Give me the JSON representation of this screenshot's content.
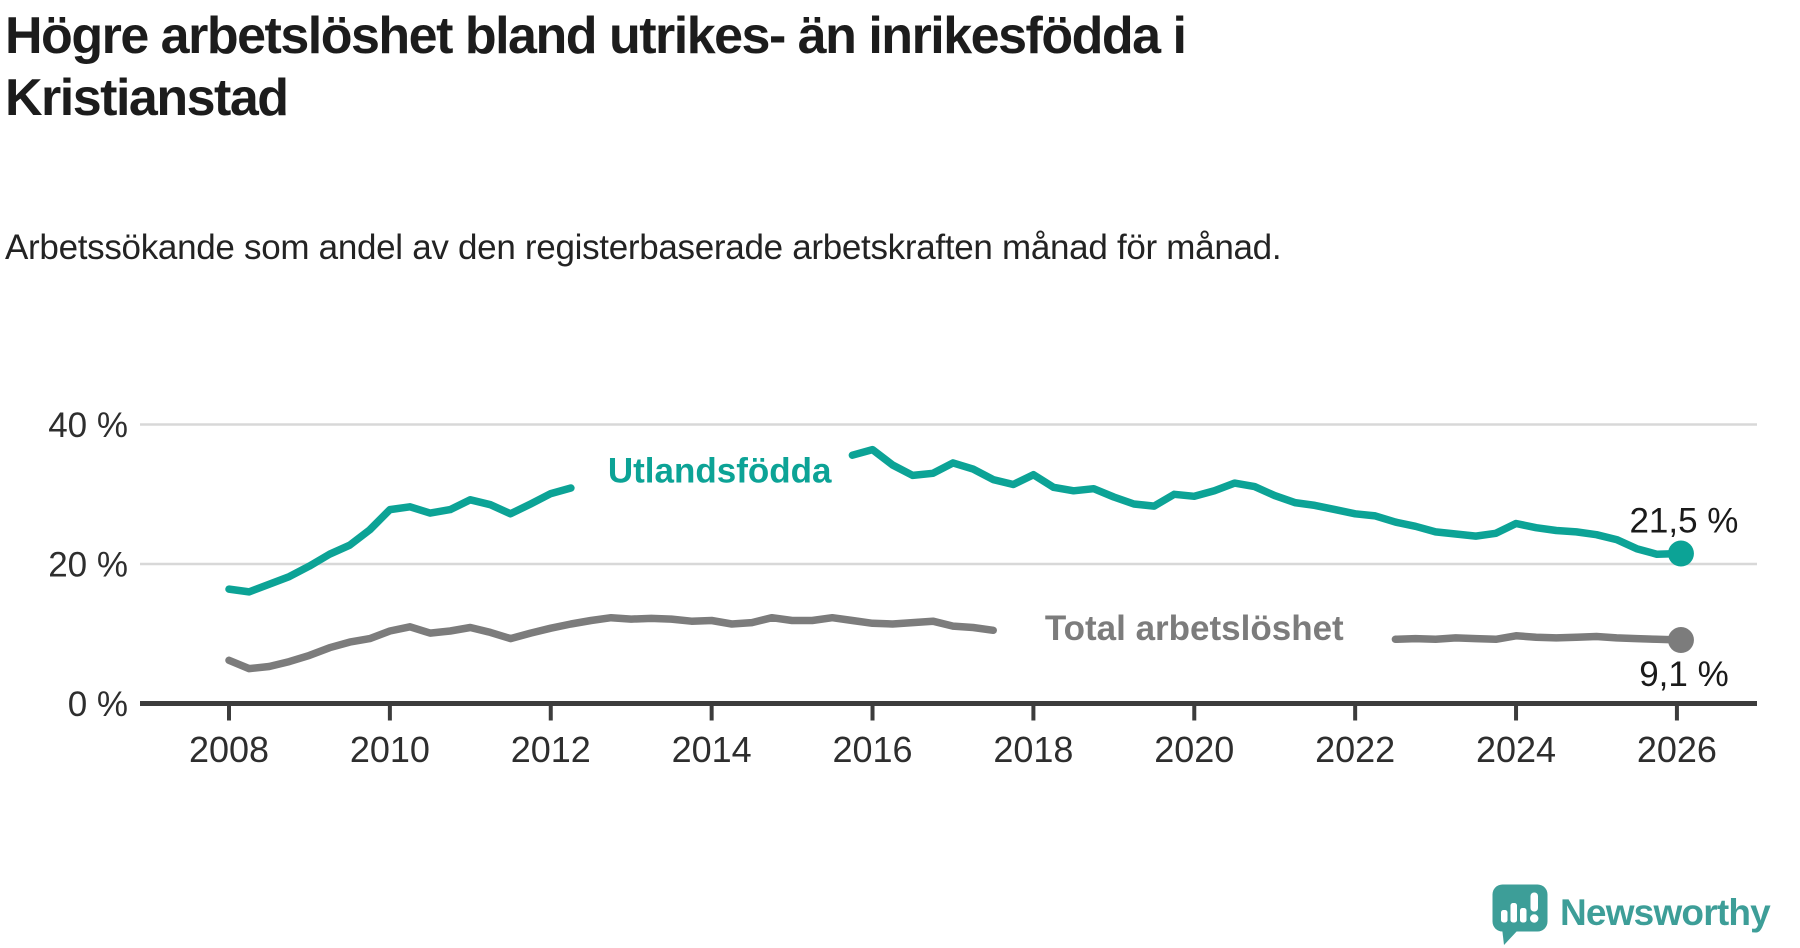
{
  "header": {
    "title": "Högre arbetslöshet bland utrikes- än inrikesfödda i Kristianstad",
    "subtitle": "Arbetssökande som andel av den registerbaserade arbetskraften månad för månad."
  },
  "branding": {
    "name": "Newsworthy",
    "icon": "newsworthy-bubble-barchart-icon",
    "color": "#3d9e98"
  },
  "chart_data": {
    "type": "line",
    "title": "Högre arbetslöshet bland utrikes- än inrikesfödda i Kristianstad",
    "xlabel": "",
    "ylabel": "",
    "unit": "%",
    "grid": "horizontal",
    "background": "#ffffff",
    "colors": {
      "axis": "#3c3c3c",
      "gridline": "#d8d8d8",
      "tick_label": "#2e2e2e",
      "end_label_text": "#1a1a1a"
    },
    "x_axis": {
      "ticks": [
        2008,
        2010,
        2012,
        2014,
        2016,
        2018,
        2020,
        2022,
        2024,
        2026
      ],
      "range": [
        2006.9,
        2027.0
      ]
    },
    "y_axis": {
      "ticks": [
        0,
        20,
        40
      ],
      "tick_labels": [
        "0 %",
        "20 %",
        "40 %"
      ],
      "range": [
        0,
        43
      ]
    },
    "series": [
      {
        "name": "Utlandsfödda",
        "color": "#0ca396",
        "label_pos": {
          "year": 2014.1,
          "value": 31.7
        },
        "end_label": "21,5 %",
        "end_value": 21.5,
        "end_label_position": "above",
        "points": [
          [
            2008.0,
            16.4
          ],
          [
            2008.25,
            16.0
          ],
          [
            2008.5,
            17.1
          ],
          [
            2008.75,
            18.2
          ],
          [
            2009.0,
            19.7
          ],
          [
            2009.25,
            21.4
          ],
          [
            2009.5,
            22.7
          ],
          [
            2009.75,
            24.9
          ],
          [
            2010.0,
            27.8
          ],
          [
            2010.25,
            28.2
          ],
          [
            2010.5,
            27.3
          ],
          [
            2010.75,
            27.8
          ],
          [
            2011.0,
            29.2
          ],
          [
            2011.25,
            28.5
          ],
          [
            2011.5,
            27.2
          ],
          [
            2011.75,
            28.6
          ],
          [
            2012.0,
            30.1
          ],
          [
            2012.25,
            30.9
          ],
          [
            2012.5,
            null
          ],
          [
            2012.75,
            null
          ],
          [
            2013.0,
            null
          ],
          [
            2013.25,
            null
          ],
          [
            2013.5,
            null
          ],
          [
            2013.75,
            null
          ],
          [
            2014.0,
            null
          ],
          [
            2014.25,
            null
          ],
          [
            2014.5,
            null
          ],
          [
            2014.75,
            null
          ],
          [
            2015.0,
            null
          ],
          [
            2015.25,
            null
          ],
          [
            2015.5,
            null
          ],
          [
            2015.75,
            35.6
          ],
          [
            2016.0,
            36.4
          ],
          [
            2016.25,
            34.2
          ],
          [
            2016.5,
            32.7
          ],
          [
            2016.75,
            33.0
          ],
          [
            2017.0,
            34.5
          ],
          [
            2017.25,
            33.6
          ],
          [
            2017.5,
            32.1
          ],
          [
            2017.75,
            31.4
          ],
          [
            2018.0,
            32.8
          ],
          [
            2018.25,
            31.0
          ],
          [
            2018.5,
            30.5
          ],
          [
            2018.75,
            30.8
          ],
          [
            2019.0,
            29.6
          ],
          [
            2019.25,
            28.6
          ],
          [
            2019.5,
            28.3
          ],
          [
            2019.75,
            30.0
          ],
          [
            2020.0,
            29.7
          ],
          [
            2020.25,
            30.5
          ],
          [
            2020.5,
            31.6
          ],
          [
            2020.75,
            31.1
          ],
          [
            2021.0,
            29.8
          ],
          [
            2021.25,
            28.8
          ],
          [
            2021.5,
            28.4
          ],
          [
            2021.75,
            27.8
          ],
          [
            2022.0,
            27.2
          ],
          [
            2022.25,
            26.9
          ],
          [
            2022.5,
            26.0
          ],
          [
            2022.75,
            25.4
          ],
          [
            2023.0,
            24.6
          ],
          [
            2023.25,
            24.3
          ],
          [
            2023.5,
            24.0
          ],
          [
            2023.75,
            24.4
          ],
          [
            2024.0,
            25.8
          ],
          [
            2024.25,
            25.2
          ],
          [
            2024.5,
            24.8
          ],
          [
            2024.75,
            24.6
          ],
          [
            2025.0,
            24.2
          ],
          [
            2025.25,
            23.5
          ],
          [
            2025.5,
            22.2
          ],
          [
            2025.75,
            21.4
          ],
          [
            2026.05,
            21.5
          ]
        ]
      },
      {
        "name": "Total arbetslöshet",
        "color": "#7c7c7c",
        "label_pos": {
          "year": 2020.0,
          "value": 9.1
        },
        "end_label": "9,1 %",
        "end_value": 9.1,
        "end_label_position": "below",
        "points": [
          [
            2008.0,
            6.2
          ],
          [
            2008.25,
            5.0
          ],
          [
            2008.5,
            5.3
          ],
          [
            2008.75,
            6.0
          ],
          [
            2009.0,
            6.9
          ],
          [
            2009.25,
            8.0
          ],
          [
            2009.5,
            8.8
          ],
          [
            2009.75,
            9.3
          ],
          [
            2010.0,
            10.4
          ],
          [
            2010.25,
            11.0
          ],
          [
            2010.5,
            10.1
          ],
          [
            2010.75,
            10.4
          ],
          [
            2011.0,
            10.9
          ],
          [
            2011.25,
            10.2
          ],
          [
            2011.5,
            9.3
          ],
          [
            2011.75,
            10.1
          ],
          [
            2012.0,
            10.8
          ],
          [
            2012.25,
            11.4
          ],
          [
            2012.5,
            11.9
          ],
          [
            2012.75,
            12.3
          ],
          [
            2013.0,
            12.1
          ],
          [
            2013.25,
            12.2
          ],
          [
            2013.5,
            12.1
          ],
          [
            2013.75,
            11.8
          ],
          [
            2014.0,
            11.9
          ],
          [
            2014.25,
            11.4
          ],
          [
            2014.5,
            11.6
          ],
          [
            2014.75,
            12.3
          ],
          [
            2015.0,
            11.9
          ],
          [
            2015.25,
            11.9
          ],
          [
            2015.5,
            12.3
          ],
          [
            2015.75,
            11.9
          ],
          [
            2016.0,
            11.5
          ],
          [
            2016.25,
            11.4
          ],
          [
            2016.5,
            11.6
          ],
          [
            2016.75,
            11.8
          ],
          [
            2017.0,
            11.1
          ],
          [
            2017.25,
            10.9
          ],
          [
            2017.5,
            10.5
          ],
          [
            2017.75,
            null
          ],
          [
            2018.0,
            null
          ],
          [
            2018.25,
            null
          ],
          [
            2018.5,
            null
          ],
          [
            2018.75,
            null
          ],
          [
            2019.0,
            null
          ],
          [
            2019.25,
            null
          ],
          [
            2019.5,
            null
          ],
          [
            2019.75,
            null
          ],
          [
            2020.0,
            null
          ],
          [
            2020.25,
            null
          ],
          [
            2020.5,
            null
          ],
          [
            2020.75,
            null
          ],
          [
            2021.0,
            null
          ],
          [
            2021.25,
            null
          ],
          [
            2021.5,
            null
          ],
          [
            2021.75,
            null
          ],
          [
            2022.0,
            null
          ],
          [
            2022.25,
            null
          ],
          [
            2022.5,
            9.2
          ],
          [
            2022.75,
            9.3
          ],
          [
            2023.0,
            9.2
          ],
          [
            2023.25,
            9.4
          ],
          [
            2023.5,
            9.3
          ],
          [
            2023.75,
            9.2
          ],
          [
            2024.0,
            9.7
          ],
          [
            2024.25,
            9.5
          ],
          [
            2024.5,
            9.4
          ],
          [
            2024.75,
            9.5
          ],
          [
            2025.0,
            9.6
          ],
          [
            2025.25,
            9.4
          ],
          [
            2025.5,
            9.3
          ],
          [
            2025.75,
            9.2
          ],
          [
            2026.05,
            9.1
          ]
        ]
      }
    ]
  }
}
